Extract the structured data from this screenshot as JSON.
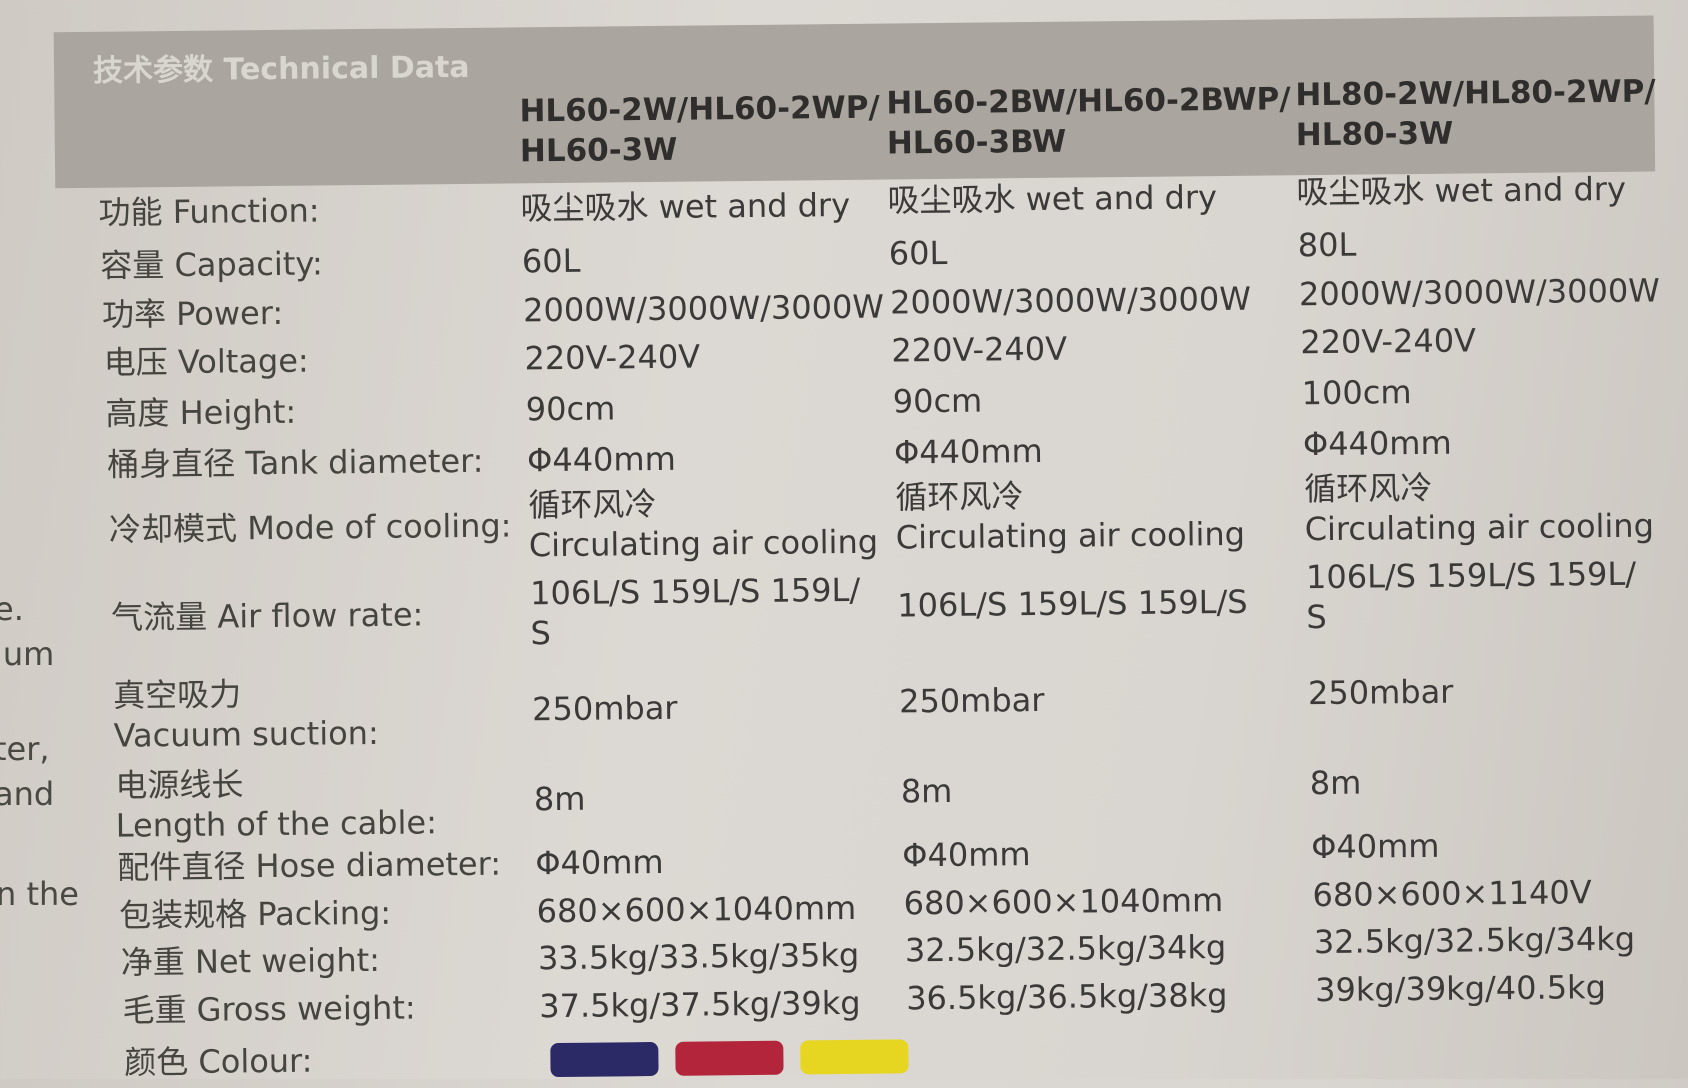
{
  "title": "技术参数 Technical Data",
  "margin_fragments": [
    "e.",
    "ium",
    "ter,",
    "and",
    "n the"
  ],
  "models": [
    [
      "HL60-2W/HL60-2WP/",
      "HL60-3W"
    ],
    [
      "HL60-2BW/HL60-2BWP/",
      "HL60-3BW"
    ],
    [
      "HL80-2W/HL80-2WP/",
      "HL80-3W"
    ]
  ],
  "rows": [
    {
      "label": [
        "功能  Function:"
      ],
      "values": [
        [
          "吸尘吸水  wet and dry"
        ],
        [
          "吸尘吸水  wet and dry"
        ],
        [
          "吸尘吸水  wet and dry"
        ]
      ]
    },
    {
      "label": [
        "容量  Capacity:"
      ],
      "values": [
        [
          "60L"
        ],
        [
          "60L"
        ],
        [
          "80L"
        ]
      ]
    },
    {
      "label": [
        "功率  Power:"
      ],
      "values": [
        [
          "2000W/3000W/3000W"
        ],
        [
          "2000W/3000W/3000W"
        ],
        [
          "2000W/3000W/3000W"
        ]
      ]
    },
    {
      "label": [
        "电压  Voltage:"
      ],
      "values": [
        [
          "220V-240V"
        ],
        [
          "220V-240V"
        ],
        [
          "220V-240V"
        ]
      ]
    },
    {
      "label": [
        "高度  Height:"
      ],
      "values": [
        [
          "90cm"
        ],
        [
          "90cm"
        ],
        [
          "100cm"
        ]
      ]
    },
    {
      "label": [
        "桶身直径  Tank diameter:"
      ],
      "values": [
        [
          "Φ440mm"
        ],
        [
          "Φ440mm"
        ],
        [
          "Φ440mm"
        ]
      ]
    },
    {
      "label": [
        "冷却模式  Mode of cooling:"
      ],
      "values": [
        [
          "循环风冷",
          "Circulating air cooling"
        ],
        [
          "循环风冷",
          "Circulating air cooling"
        ],
        [
          "循环风冷",
          "Circulating air cooling"
        ]
      ]
    },
    {
      "label": [
        "气流量  Air flow rate:"
      ],
      "values": [
        [
          "106L/S  159L/S  159L/",
          "S"
        ],
        [
          "106L/S  159L/S  159L/S"
        ],
        [
          "106L/S  159L/S  159L/",
          "S"
        ]
      ]
    },
    {
      "label": [
        "真空吸力",
        "Vacuum suction:"
      ],
      "values": [
        [
          "250mbar"
        ],
        [
          "250mbar"
        ],
        [
          "250mbar"
        ]
      ]
    },
    {
      "label": [
        "电源线长",
        "Length of the cable:"
      ],
      "values": [
        [
          "8m"
        ],
        [
          "8m"
        ],
        [
          "8m"
        ]
      ]
    },
    {
      "label": [
        "配件直径  Hose diameter:"
      ],
      "values": [
        [
          "Φ40mm"
        ],
        [
          "Φ40mm"
        ],
        [
          "Φ40mm"
        ]
      ]
    },
    {
      "label": [
        "包装规格  Packing:"
      ],
      "values": [
        [
          "680×600×1040mm"
        ],
        [
          "680×600×1040mm"
        ],
        [
          "680×600×1140V"
        ]
      ]
    },
    {
      "label": [
        "净重  Net weight:"
      ],
      "values": [
        [
          "33.5kg/33.5kg/35kg"
        ],
        [
          "32.5kg/32.5kg/34kg"
        ],
        [
          "32.5kg/32.5kg/34kg"
        ]
      ]
    },
    {
      "label": [
        "毛重  Gross weight:"
      ],
      "values": [
        [
          "37.5kg/37.5kg/39kg"
        ],
        [
          "36.5kg/36.5kg/38kg"
        ],
        [
          "39kg/39kg/40.5kg"
        ]
      ]
    },
    {
      "label": [
        "颜色  Colour:"
      ],
      "values": []
    }
  ],
  "colours": [
    "#2b2a66",
    "#b3253a",
    "#e6d622"
  ]
}
